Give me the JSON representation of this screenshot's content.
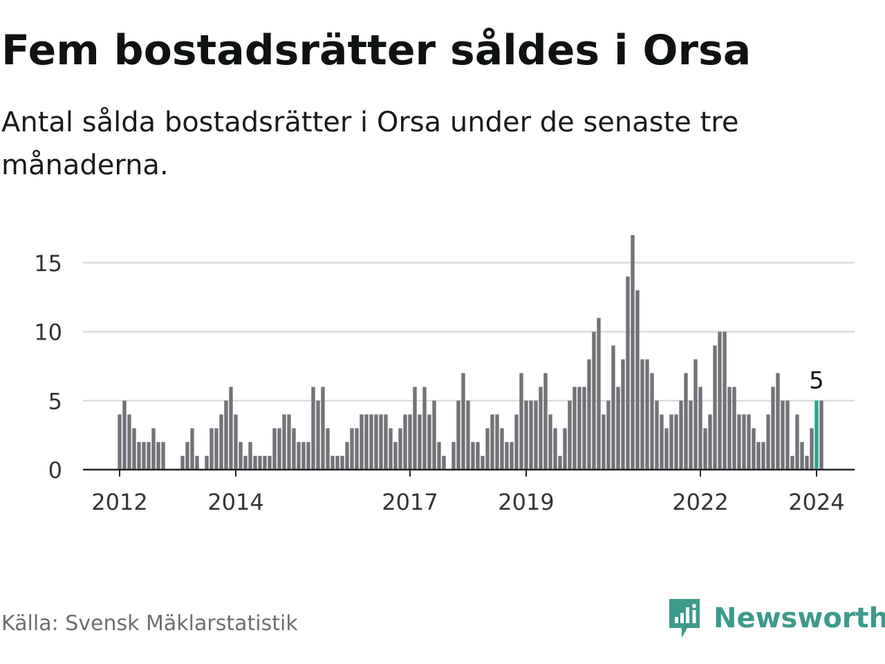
{
  "title": "Fem bostadsrätter såldes i Orsa",
  "subtitle": "Antal sålda bostadsrätter i Orsa under de senaste tre månaderna.",
  "source": "Källa: Svensk Mäklarstatistik",
  "brand": {
    "name": "Newsworthy",
    "icon": "newsworthy-logo-icon",
    "color": "#3d9a8c"
  },
  "chart_data": {
    "type": "bar",
    "title": "Fem bostadsrätter såldes i Orsa",
    "xlabel": "",
    "ylabel": "",
    "ylim": [
      0,
      17
    ],
    "yticks": [
      0,
      5,
      10,
      15
    ],
    "xtick_labels": [
      {
        "label": "2012",
        "index": 0
      },
      {
        "label": "2014",
        "index": 24
      },
      {
        "label": "2017",
        "index": 60
      },
      {
        "label": "2019",
        "index": 84
      },
      {
        "label": "2022",
        "index": 120
      },
      {
        "label": "2024",
        "index": 144
      }
    ],
    "grid": true,
    "bar_color": "#737278",
    "highlight_color": "#2aa390",
    "highlight_index": 144,
    "annotation": {
      "index": 144,
      "text": "5"
    },
    "values": [
      4,
      5,
      4,
      3,
      2,
      2,
      2,
      3,
      2,
      2,
      0,
      0,
      0,
      1,
      2,
      3,
      1,
      0,
      1,
      3,
      3,
      4,
      5,
      6,
      4,
      2,
      1,
      2,
      1,
      1,
      1,
      1,
      3,
      3,
      4,
      4,
      3,
      2,
      2,
      2,
      6,
      5,
      6,
      3,
      1,
      1,
      1,
      2,
      3,
      3,
      4,
      4,
      4,
      4,
      4,
      4,
      3,
      2,
      3,
      4,
      4,
      6,
      4,
      6,
      4,
      5,
      2,
      1,
      0,
      2,
      5,
      7,
      5,
      2,
      2,
      1,
      3,
      4,
      4,
      3,
      2,
      2,
      4,
      7,
      5,
      5,
      5,
      6,
      7,
      4,
      3,
      1,
      3,
      5,
      6,
      6,
      6,
      8,
      10,
      11,
      4,
      5,
      9,
      6,
      8,
      14,
      17,
      13,
      8,
      8,
      7,
      5,
      4,
      3,
      4,
      4,
      5,
      7,
      5,
      8,
      6,
      3,
      4,
      9,
      10,
      10,
      6,
      6,
      4,
      4,
      4,
      3,
      2,
      2,
      4,
      6,
      7,
      5,
      5,
      1,
      4,
      2,
      1,
      3,
      5,
      5
    ]
  }
}
